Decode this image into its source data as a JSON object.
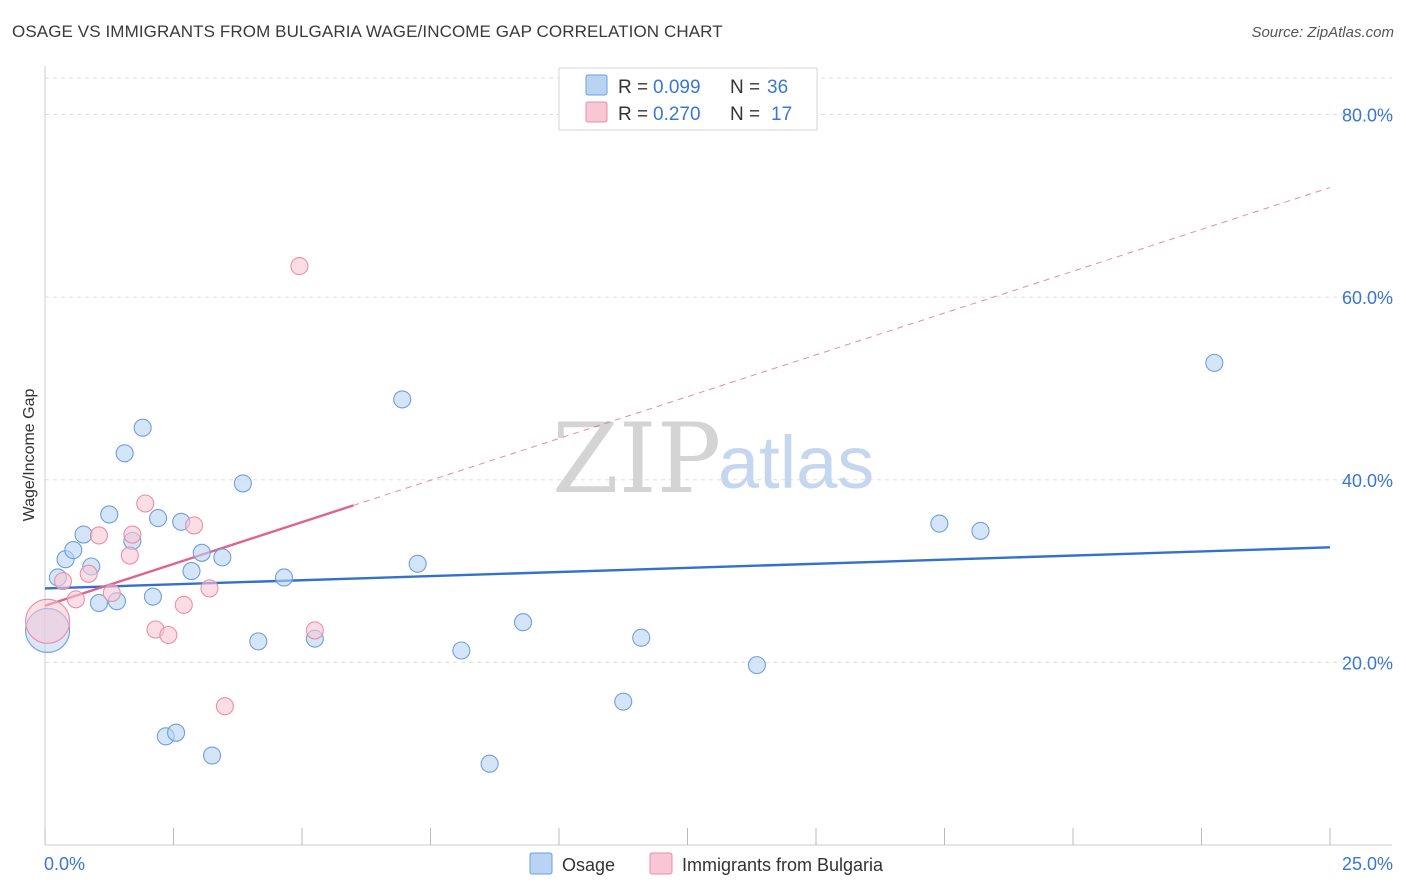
{
  "title": "OSAGE VS IMMIGRANTS FROM BULGARIA WAGE/INCOME GAP CORRELATION CHART",
  "source": "Source: ZipAtlas.com",
  "watermark": {
    "zip": "ZIP",
    "atlas": "atlas"
  },
  "colors": {
    "osage_fill": "#b9d3f3",
    "osage_stroke": "#6f9fdc",
    "osage_line": "#3371cc",
    "bulgaria_fill": "#f8c6d4",
    "bulgaria_stroke": "#e98faa",
    "bulgaria_line": "#e0628f",
    "tick_label": "#3a76d4",
    "grid": "#dddddd"
  },
  "legend": {
    "osage": {
      "r_label": "R = ",
      "r_value": "0.099",
      "n_label": "N = ",
      "n_value": "36"
    },
    "bulgaria": {
      "r_label": "R = ",
      "r_value": "0.270",
      "n_label": "N = ",
      "n_value": "17"
    }
  },
  "chart_data": {
    "type": "scatter",
    "title": "OSAGE VS IMMIGRANTS FROM BULGARIA WAGE/INCOME GAP CORRELATION CHART",
    "xlabel": "",
    "ylabel": "Wage/Income Gap",
    "xlim": [
      0,
      25
    ],
    "ylim": [
      0,
      84
    ],
    "x_tick_labels": [
      "0.0%",
      "25.0%"
    ],
    "y_ticks": [
      20,
      40,
      60,
      80
    ],
    "y_tick_labels": [
      "20.0%",
      "40.0%",
      "60.0%",
      "80.0%"
    ],
    "grid": true,
    "series": [
      {
        "name": "Osage",
        "r": 0.099,
        "n": 36,
        "trend": {
          "x0": 0,
          "y0": 28.1,
          "x1": 25,
          "y1": 32.6,
          "solid_to_x": 25
        },
        "points": [
          {
            "x": 0.05,
            "y": 23.5,
            "big": true
          },
          {
            "x": 0.25,
            "y": 29.3
          },
          {
            "x": 0.4,
            "y": 31.3
          },
          {
            "x": 0.55,
            "y": 32.3
          },
          {
            "x": 0.75,
            "y": 34.0
          },
          {
            "x": 0.9,
            "y": 30.5
          },
          {
            "x": 1.05,
            "y": 26.5
          },
          {
            "x": 1.25,
            "y": 36.2
          },
          {
            "x": 1.4,
            "y": 26.7
          },
          {
            "x": 1.55,
            "y": 42.9
          },
          {
            "x": 1.7,
            "y": 33.3
          },
          {
            "x": 1.9,
            "y": 45.7
          },
          {
            "x": 2.1,
            "y": 27.2
          },
          {
            "x": 2.2,
            "y": 35.8
          },
          {
            "x": 2.35,
            "y": 11.9
          },
          {
            "x": 2.55,
            "y": 12.3
          },
          {
            "x": 2.65,
            "y": 35.4
          },
          {
            "x": 2.85,
            "y": 30.0
          },
          {
            "x": 3.05,
            "y": 32.0
          },
          {
            "x": 3.25,
            "y": 9.8
          },
          {
            "x": 3.45,
            "y": 31.5
          },
          {
            "x": 3.85,
            "y": 39.6
          },
          {
            "x": 4.15,
            "y": 22.3
          },
          {
            "x": 4.65,
            "y": 29.3
          },
          {
            "x": 5.25,
            "y": 22.6
          },
          {
            "x": 6.95,
            "y": 48.8
          },
          {
            "x": 7.25,
            "y": 30.8
          },
          {
            "x": 8.1,
            "y": 21.3
          },
          {
            "x": 8.65,
            "y": 8.9
          },
          {
            "x": 9.3,
            "y": 24.4
          },
          {
            "x": 11.25,
            "y": 15.7
          },
          {
            "x": 11.6,
            "y": 22.7
          },
          {
            "x": 13.85,
            "y": 19.7
          },
          {
            "x": 17.4,
            "y": 35.2
          },
          {
            "x": 18.2,
            "y": 34.4
          },
          {
            "x": 22.75,
            "y": 52.8
          }
        ]
      },
      {
        "name": "Immigrants from Bulgaria",
        "r": 0.27,
        "n": 17,
        "trend": {
          "x0": 0,
          "y0": 26.2,
          "x1": 25,
          "y1": 72.0,
          "solid_to_x": 6.0
        },
        "points": [
          {
            "x": 0.05,
            "y": 24.5,
            "big": true
          },
          {
            "x": 0.35,
            "y": 28.9
          },
          {
            "x": 0.6,
            "y": 26.9
          },
          {
            "x": 0.85,
            "y": 29.7
          },
          {
            "x": 1.05,
            "y": 33.9
          },
          {
            "x": 1.3,
            "y": 27.6
          },
          {
            "x": 1.65,
            "y": 31.7
          },
          {
            "x": 1.7,
            "y": 34.0
          },
          {
            "x": 1.95,
            "y": 37.4
          },
          {
            "x": 2.15,
            "y": 23.6
          },
          {
            "x": 2.4,
            "y": 23.0
          },
          {
            "x": 2.7,
            "y": 26.3
          },
          {
            "x": 2.9,
            "y": 35.0
          },
          {
            "x": 3.2,
            "y": 28.1
          },
          {
            "x": 3.5,
            "y": 15.2
          },
          {
            "x": 4.95,
            "y": 63.4
          },
          {
            "x": 5.25,
            "y": 23.5
          }
        ]
      }
    ]
  },
  "bottom_legend": [
    {
      "label": "Osage"
    },
    {
      "label": "Immigrants from Bulgaria"
    }
  ]
}
